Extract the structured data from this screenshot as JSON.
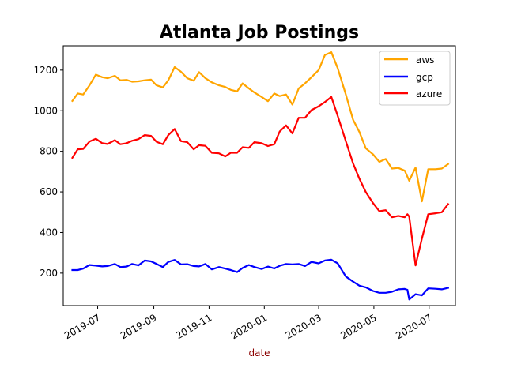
{
  "chart_data": {
    "type": "line",
    "title": "Atlanta Job Postings",
    "xlabel": "date",
    "ylabel": "",
    "xlim": [
      "2019-05-24",
      "2020-07-30"
    ],
    "ylim": [
      40,
      1320
    ],
    "xticks": [
      {
        "date": "2019-07-01",
        "label": "2019-07"
      },
      {
        "date": "2019-09-01",
        "label": "2019-09"
      },
      {
        "date": "2019-11-01",
        "label": "2019-11"
      },
      {
        "date": "2020-01-01",
        "label": "2020-01"
      },
      {
        "date": "2020-03-01",
        "label": "2020-03"
      },
      {
        "date": "2020-05-01",
        "label": "2020-05"
      },
      {
        "date": "2020-07-01",
        "label": "2020-07"
      }
    ],
    "yticks": [
      200,
      400,
      600,
      800,
      1000,
      1200
    ],
    "grid": false,
    "legend": "top-right",
    "series": [
      {
        "name": "aws",
        "color": "#ffa500",
        "points": [
          [
            "2019-06-03",
            1048
          ],
          [
            "2019-06-09",
            1085
          ],
          [
            "2019-06-15",
            1080
          ],
          [
            "2019-06-22",
            1125
          ],
          [
            "2019-06-29",
            1178
          ],
          [
            "2019-07-06",
            1165
          ],
          [
            "2019-07-12",
            1160
          ],
          [
            "2019-07-20",
            1172
          ],
          [
            "2019-07-26",
            1150
          ],
          [
            "2019-08-02",
            1152
          ],
          [
            "2019-08-08",
            1143
          ],
          [
            "2019-08-15",
            1145
          ],
          [
            "2019-08-22",
            1150
          ],
          [
            "2019-08-29",
            1153
          ],
          [
            "2019-09-04",
            1125
          ],
          [
            "2019-09-11",
            1115
          ],
          [
            "2019-09-17",
            1150
          ],
          [
            "2019-09-24",
            1215
          ],
          [
            "2019-10-01",
            1192
          ],
          [
            "2019-10-08",
            1160
          ],
          [
            "2019-10-15",
            1148
          ],
          [
            "2019-10-21",
            1190
          ],
          [
            "2019-10-28",
            1160
          ],
          [
            "2019-11-04",
            1140
          ],
          [
            "2019-11-12",
            1125
          ],
          [
            "2019-11-19",
            1117
          ],
          [
            "2019-11-25",
            1103
          ],
          [
            "2019-12-02",
            1095
          ],
          [
            "2019-12-08",
            1135
          ],
          [
            "2019-12-15",
            1110
          ],
          [
            "2019-12-21",
            1090
          ],
          [
            "2019-12-29",
            1068
          ],
          [
            "2020-01-05",
            1047
          ],
          [
            "2020-01-12",
            1085
          ],
          [
            "2020-01-18",
            1072
          ],
          [
            "2020-01-25",
            1080
          ],
          [
            "2020-02-01",
            1030
          ],
          [
            "2020-02-08",
            1110
          ],
          [
            "2020-02-15",
            1135
          ],
          [
            "2020-02-22",
            1165
          ],
          [
            "2020-03-01",
            1200
          ],
          [
            "2020-03-08",
            1275
          ],
          [
            "2020-03-15",
            1288
          ],
          [
            "2020-03-22",
            1210
          ],
          [
            "2020-03-31",
            1080
          ],
          [
            "2020-04-08",
            955
          ],
          [
            "2020-04-15",
            895
          ],
          [
            "2020-04-22",
            815
          ],
          [
            "2020-04-30",
            785
          ],
          [
            "2020-05-07",
            748
          ],
          [
            "2020-05-14",
            762
          ],
          [
            "2020-05-21",
            715
          ],
          [
            "2020-05-28",
            718
          ],
          [
            "2020-06-04",
            705
          ],
          [
            "2020-06-09",
            655
          ],
          [
            "2020-06-16",
            720
          ],
          [
            "2020-06-23",
            553
          ],
          [
            "2020-06-30",
            712
          ],
          [
            "2020-07-08",
            712
          ],
          [
            "2020-07-15",
            715
          ],
          [
            "2020-07-22",
            737
          ]
        ]
      },
      {
        "name": "gcp",
        "color": "#0000ff",
        "points": [
          [
            "2019-06-03",
            215
          ],
          [
            "2019-06-09",
            215
          ],
          [
            "2019-06-15",
            222
          ],
          [
            "2019-06-22",
            240
          ],
          [
            "2019-06-29",
            237
          ],
          [
            "2019-07-06",
            233
          ],
          [
            "2019-07-12",
            235
          ],
          [
            "2019-07-20",
            245
          ],
          [
            "2019-07-26",
            230
          ],
          [
            "2019-08-02",
            232
          ],
          [
            "2019-08-08",
            245
          ],
          [
            "2019-08-15",
            238
          ],
          [
            "2019-08-22",
            262
          ],
          [
            "2019-08-29",
            258
          ],
          [
            "2019-09-04",
            245
          ],
          [
            "2019-09-11",
            230
          ],
          [
            "2019-09-17",
            255
          ],
          [
            "2019-09-24",
            265
          ],
          [
            "2019-10-01",
            243
          ],
          [
            "2019-10-08",
            244
          ],
          [
            "2019-10-15",
            235
          ],
          [
            "2019-10-21",
            233
          ],
          [
            "2019-10-28",
            245
          ],
          [
            "2019-11-04",
            218
          ],
          [
            "2019-11-12",
            230
          ],
          [
            "2019-11-19",
            222
          ],
          [
            "2019-11-25",
            215
          ],
          [
            "2019-12-02",
            205
          ],
          [
            "2019-12-08",
            225
          ],
          [
            "2019-12-15",
            240
          ],
          [
            "2019-12-21",
            230
          ],
          [
            "2019-12-29",
            220
          ],
          [
            "2020-01-05",
            232
          ],
          [
            "2020-01-12",
            223
          ],
          [
            "2020-01-18",
            236
          ],
          [
            "2020-01-25",
            245
          ],
          [
            "2020-02-01",
            243
          ],
          [
            "2020-02-08",
            245
          ],
          [
            "2020-02-15",
            235
          ],
          [
            "2020-02-22",
            255
          ],
          [
            "2020-03-01",
            248
          ],
          [
            "2020-03-08",
            262
          ],
          [
            "2020-03-15",
            266
          ],
          [
            "2020-03-22",
            248
          ],
          [
            "2020-03-31",
            183
          ],
          [
            "2020-04-08",
            158
          ],
          [
            "2020-04-15",
            138
          ],
          [
            "2020-04-22",
            130
          ],
          [
            "2020-04-30",
            112
          ],
          [
            "2020-05-07",
            103
          ],
          [
            "2020-05-14",
            103
          ],
          [
            "2020-05-21",
            108
          ],
          [
            "2020-05-28",
            120
          ],
          [
            "2020-06-04",
            122
          ],
          [
            "2020-06-07",
            118
          ],
          [
            "2020-06-09",
            70
          ],
          [
            "2020-06-16",
            96
          ],
          [
            "2020-06-23",
            90
          ],
          [
            "2020-06-30",
            125
          ],
          [
            "2020-07-08",
            123
          ],
          [
            "2020-07-15",
            120
          ],
          [
            "2020-07-22",
            127
          ]
        ]
      },
      {
        "name": "azure",
        "color": "#ff0000",
        "points": [
          [
            "2019-06-03",
            768
          ],
          [
            "2019-06-09",
            810
          ],
          [
            "2019-06-15",
            812
          ],
          [
            "2019-06-22",
            848
          ],
          [
            "2019-06-29",
            862
          ],
          [
            "2019-07-06",
            840
          ],
          [
            "2019-07-12",
            836
          ],
          [
            "2019-07-20",
            855
          ],
          [
            "2019-07-26",
            835
          ],
          [
            "2019-08-02",
            840
          ],
          [
            "2019-08-08",
            852
          ],
          [
            "2019-08-15",
            860
          ],
          [
            "2019-08-22",
            880
          ],
          [
            "2019-08-29",
            876
          ],
          [
            "2019-09-04",
            847
          ],
          [
            "2019-09-11",
            835
          ],
          [
            "2019-09-17",
            880
          ],
          [
            "2019-09-24",
            910
          ],
          [
            "2019-10-01",
            850
          ],
          [
            "2019-10-08",
            845
          ],
          [
            "2019-10-15",
            810
          ],
          [
            "2019-10-21",
            830
          ],
          [
            "2019-10-28",
            827
          ],
          [
            "2019-11-04",
            793
          ],
          [
            "2019-11-12",
            790
          ],
          [
            "2019-11-19",
            775
          ],
          [
            "2019-11-25",
            793
          ],
          [
            "2019-12-02",
            793
          ],
          [
            "2019-12-08",
            820
          ],
          [
            "2019-12-15",
            817
          ],
          [
            "2019-12-21",
            845
          ],
          [
            "2019-12-29",
            840
          ],
          [
            "2020-01-05",
            826
          ],
          [
            "2020-01-12",
            835
          ],
          [
            "2020-01-18",
            898
          ],
          [
            "2020-01-25",
            928
          ],
          [
            "2020-02-01",
            888
          ],
          [
            "2020-02-08",
            965
          ],
          [
            "2020-02-15",
            965
          ],
          [
            "2020-02-22",
            1003
          ],
          [
            "2020-03-01",
            1022
          ],
          [
            "2020-03-08",
            1043
          ],
          [
            "2020-03-15",
            1068
          ],
          [
            "2020-03-22",
            975
          ],
          [
            "2020-03-31",
            850
          ],
          [
            "2020-04-08",
            740
          ],
          [
            "2020-04-15",
            665
          ],
          [
            "2020-04-22",
            600
          ],
          [
            "2020-04-30",
            545
          ],
          [
            "2020-05-07",
            505
          ],
          [
            "2020-05-14",
            510
          ],
          [
            "2020-05-21",
            475
          ],
          [
            "2020-05-28",
            482
          ],
          [
            "2020-06-04",
            475
          ],
          [
            "2020-06-07",
            490
          ],
          [
            "2020-06-09",
            478
          ],
          [
            "2020-06-16",
            238
          ],
          [
            "2020-06-23",
            370
          ],
          [
            "2020-06-30",
            490
          ],
          [
            "2020-07-08",
            495
          ],
          [
            "2020-07-15",
            500
          ],
          [
            "2020-07-22",
            540
          ]
        ]
      }
    ]
  }
}
